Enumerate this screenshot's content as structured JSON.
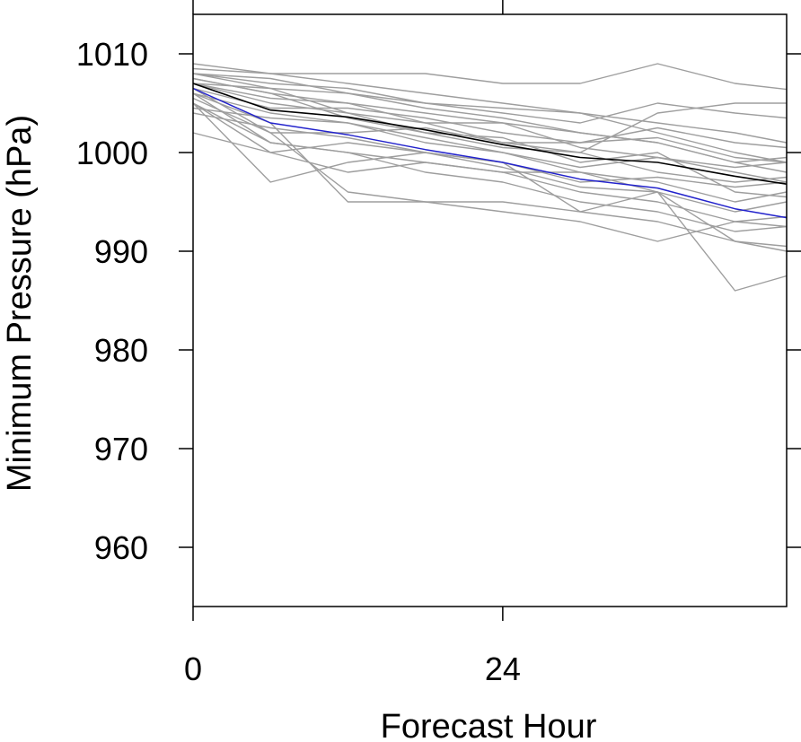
{
  "chart_data": {
    "type": "line",
    "title": "",
    "xlabel": "Forecast Hour",
    "ylabel": "Minimum Pressure (hPa)",
    "xlim": [
      0,
      46
    ],
    "ylim": [
      954,
      1014
    ],
    "xticks": [
      0,
      24
    ],
    "yticks": [
      960,
      970,
      980,
      990,
      1000,
      1010
    ],
    "x": [
      0,
      6,
      12,
      18,
      24,
      30,
      36,
      42,
      46
    ],
    "colors": {
      "ensemble": "#9e9e9e",
      "mean": "#000000",
      "highlight": "#2323cc"
    },
    "highlight_series": {
      "values": [
        1006.5,
        1003.0,
        1001.8,
        1000.3,
        999.0,
        997.3,
        996.4,
        994.3,
        993.4
      ]
    },
    "mean_series": {
      "values": [
        1007.0,
        1004.3,
        1003.6,
        1002.3,
        1000.8,
        999.5,
        999.0,
        997.6,
        996.8
      ]
    },
    "ensemble_series": [
      {
        "values": [
          1009.0,
          1008.0,
          1008.0,
          1008.0,
          1007.0,
          1007.0,
          1009.0,
          1007.0,
          1006.4
        ]
      },
      {
        "values": [
          1008.5,
          1008.0,
          1007.0,
          1006.0,
          1005.0,
          1004.0,
          1003.0,
          1002.0,
          1001.0
        ]
      },
      {
        "values": [
          1008.0,
          1007.0,
          1006.5,
          1005.0,
          1004.0,
          1003.0,
          1005.0,
          1004.0,
          1003.5
        ]
      },
      {
        "values": [
          1007.5,
          1006.0,
          1005.0,
          1004.0,
          1003.0,
          1002.0,
          1001.0,
          999.0,
          998.0
        ]
      },
      {
        "values": [
          1007.0,
          1005.0,
          1004.0,
          1003.0,
          1001.0,
          1001.0,
          1001.5,
          999.5,
          999.0
        ]
      },
      {
        "values": [
          1006.0,
          1001.0,
          1000.0,
          999.0,
          998.0,
          996.0,
          995.0,
          993.0,
          992.5
        ]
      },
      {
        "values": [
          1005.0,
          1000.0,
          998.0,
          999.0,
          998.0,
          998.0,
          996.0,
          991.0,
          990.0
        ]
      },
      {
        "values": [
          1005.0,
          997.0,
          999.0,
          1000.0,
          999.0,
          994.0,
          996.0,
          986.0,
          987.5
        ]
      },
      {
        "values": [
          1006.5,
          1002.0,
          996.0,
          995.0,
          994.0,
          993.0,
          991.0,
          993.0,
          993.5
        ]
      },
      {
        "values": [
          1006.0,
          1003.0,
          995.0,
          995.0,
          995.0,
          994.0,
          993.0,
          991.0,
          990.5
        ]
      },
      {
        "values": [
          1004.5,
          1003.5,
          1003.0,
          1001.0,
          1000.0,
          998.0,
          997.0,
          995.0,
          996.0
        ]
      },
      {
        "values": [
          1005.5,
          1002.0,
          1002.0,
          1002.5,
          1001.0,
          1000.0,
          998.0,
          997.0,
          997.5
        ]
      },
      {
        "values": [
          1002.0,
          1000.0,
          1001.0,
          1000.0,
          999.0,
          997.0,
          997.5,
          996.5,
          997.0
        ]
      },
      {
        "values": [
          1004.0,
          1002.5,
          1001.5,
          1000.0,
          998.5,
          996.5,
          996.0,
          994.0,
          995.0
        ]
      },
      {
        "values": [
          1008.0,
          1007.5,
          1006.0,
          1005.0,
          1004.5,
          1004.0,
          1002.0,
          1000.0,
          999.0
        ]
      },
      {
        "values": [
          1006.5,
          1004.5,
          1004.5,
          1003.5,
          1002.0,
          1001.0,
          1002.5,
          1001.0,
          1000.5
        ]
      },
      {
        "values": [
          1007.0,
          1005.5,
          1005.0,
          1003.0,
          1003.0,
          1000.5,
          999.5,
          998.5,
          999.0
        ]
      },
      {
        "values": [
          1005.0,
          1001.0,
          1000.0,
          998.0,
          997.0,
          995.0,
          994.0,
          992.0,
          992.5
        ]
      },
      {
        "values": [
          1008.0,
          1006.5,
          1004.0,
          1002.0,
          1001.5,
          999.0,
          1000.0,
          996.0,
          995.5
        ]
      },
      {
        "values": [
          1006.0,
          1004.0,
          1003.0,
          1001.5,
          1000.0,
          998.5,
          999.5,
          998.0,
          997.0
        ]
      },
      {
        "values": [
          1007.5,
          1006.0,
          1003.5,
          1002.0,
          1000.5,
          1000.0,
          1004.0,
          1005.0,
          1005.0
        ]
      },
      {
        "values": [
          1007.0,
          1006.5,
          1006.0,
          1004.5,
          1003.5,
          1002.0,
          1001.0,
          999.0,
          999.5
        ]
      }
    ]
  }
}
